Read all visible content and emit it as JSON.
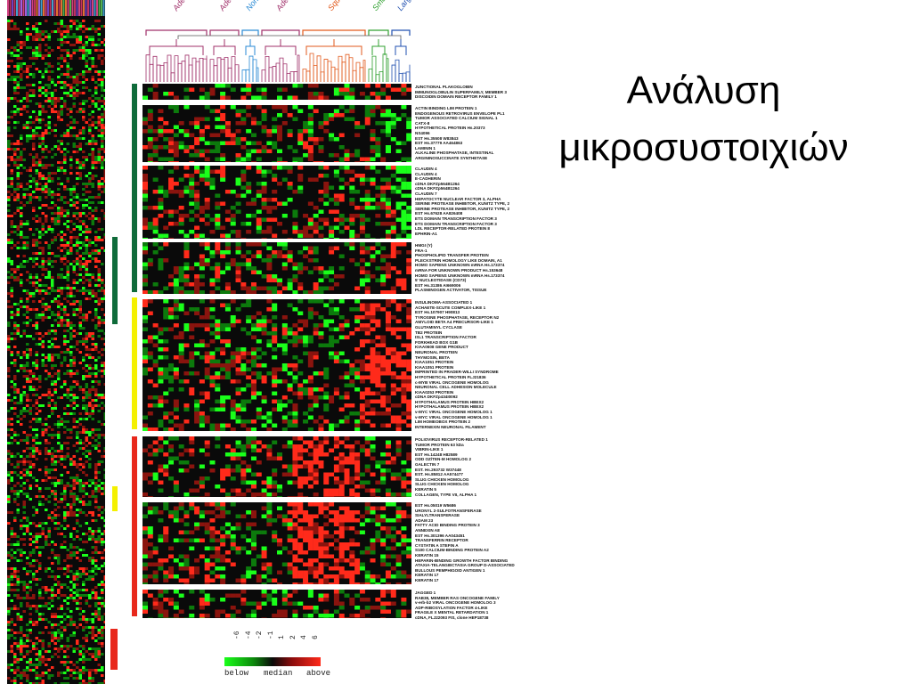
{
  "slide": {
    "title_line1": "Ανάλυση",
    "title_line2": "μικροσυστοιχιών"
  },
  "figure": {
    "group_labels": [
      {
        "text": "Adeno g",
        "color": "#a0306a"
      },
      {
        "text": "Adeno g",
        "color": "#a0306a"
      },
      {
        "text": "Normal",
        "color": "#2a8ad4"
      },
      {
        "text": "Adeno g",
        "color": "#a0306a"
      },
      {
        "text": "Squamou",
        "color": "#e25a1c"
      },
      {
        "text": "Small ce",
        "color": "#30a030"
      },
      {
        "text": "Large ce",
        "color": "#2050b0"
      }
    ],
    "cluster_blocks": [
      {
        "genes": [
          "JUNCTIONAL PLAKOGLOBIN",
          "IMMUNOGLOBULIN SUPERFAMILY, MEMBER 3",
          "DISCOIDIN DOMAIN RECEPTOR FAMILY 1"
        ]
      },
      {
        "genes": [
          "ACTIN BINDING LIM PROTEIN 1",
          "ENDOGENOUS RETROVIRUS ENVELOPE PL1",
          "TUMOR ASSOCIATED CALCIUM SIGNAL 1",
          "CATX-8",
          "HYPOTHETICAL PROTEIN Hs.20373",
          "NS4096",
          "EST Hs.35508 W83843",
          "EST Hs.37779 AA464863",
          "LAMININ 1",
          "ALKALINE PHOSPHATASE, INTESTINAL",
          "ARGININOSUCCINATE SYNTHETASE"
        ]
      },
      {
        "genes": [
          "CLAUDIN 4",
          "CLAUDIN 4",
          "E-CADHERIN",
          "cDNA DKFZp564B1264",
          "cDNA DKFZp564B1264",
          "CLAUDIN 7",
          "HEPATOCYTE NUCLEAR FACTOR 3, ALPHA",
          "SERINE PROTEASE INHIBITOR, KUNITZ TYPE, 2",
          "SERINE PROTEASE INHIBITOR, KUNITZ TYPE, 2",
          "EST Hs.67628 AA826408",
          "ETS DOMAIN TRANSCRIPTION FACTOR 3",
          "ETS DOMAIN TRANSCRIPTION FACTOR 3",
          "LDL RECEPTOR-RELATED PROTEIN 8",
          "EPHRIN-A1"
        ]
      },
      {
        "genes": [
          "HMGI (Y)",
          "FRA-1",
          "PHOSPHOLIPID TRANSFER PROTEIN",
          "PLECKSTRIN HOMOLOGY LIKE DOMAIN, A1",
          "HOMO SAPIENS UNKNOWN mRNA Hs.173374",
          "mRNA FOR UNKNOWN PRODUCT Hs.153648",
          "HOMO SAPIENS UNKNOWN mRNA Hs.173374",
          "5' NUCLEOTIDASE (CD73)",
          "EST Hs.31386 AI669006",
          "PLASMINOGEN ACTIVATOR, TISSUE"
        ]
      },
      {
        "genes": [
          "INSULINOMA-ASSOCIATED 1",
          "ACHAETE-SCUTE COMPLEX-LIKE 1",
          "EST Hs.107907 H90813",
          "TYROSINE PHOSPHATASE, RECEPTOR N2",
          "AMYLOID BETA A4 PRECURSOR-LIKE 1",
          "GLUTAMINYL CYCLASE",
          "TB2 PROTEIN",
          "ISL1 TRANSCRIPTION FACTOR",
          "FORKHEAD BOX G1B",
          "KIAA0608 GENE PRODUCT",
          "NEURONAL PROTEIN",
          "THYMOSIN, BETA",
          "KIAA1051 PROTEIN",
          "KIAA1051 PROTEIN",
          "IMPRINTED IN PRADER-WILLI SYNDROME",
          "HYPOTHETICAL PROTEIN FLJ21836",
          "c-MYB VIRAL ONCOGENE HOMOLOG",
          "NEURONAL CELL ADHESION MOLECULE",
          "KIAA0253 PROTEIN",
          "cDNA DKFZp434I0092",
          "HYPOTHALAMUS PROTEIN HBEX2",
          "HYPOTHALAMUS PROTEIN HBEX2",
          "v-MYC VIRAL ONCOGENE HOMOLOG 1",
          "v-MYC VIRAL ONCOGENE HOMOLOG 1",
          "LIM HOMEOBOX PROTEIN 2",
          "INTERNEXIN NEURONAL FILAMENT"
        ]
      },
      {
        "genes": [
          "POLIOVIRUS RECEPTOR-RELATED 1",
          "TUMOR PROTEIN 63 kDa",
          "VIBRIN-LIKE 1",
          "EST Hs.14248 H82589",
          "ODD OZ/TEN-M HOMOLOG 2",
          "GALECTIN 7",
          "EST. Hs.293732 W37448",
          "EST. Hs.85812 AA574477",
          "SLUG CHICKEN HOMOLOG",
          "SLUG CHICKEN HOMOLOG",
          "KERATIN 5",
          "COLLAGEN, TYPE VII, ALPHA 1"
        ]
      },
      {
        "genes": [
          "EST Hs.05019 W5686",
          "URONYL 2-SULFOTRANSFERASE",
          "SIALYLTRANSFERASE",
          "ADAM 23",
          "FATTY ACID BINDING PROTEIN 3",
          "ANNEXIN A8",
          "EST Hs.301396 AA043451",
          "TRANSFERRIN RECEPTOR",
          "CYSTATIN A STEFIN A",
          "S100 CALCIUM-BINDING PROTEIN A2",
          "KERATIN 15",
          "HEPARIN-BINDING GROWTH FACTOR BINDING",
          "ATAXIA-TELANGIECTASIA GROUP D-ASSOCIATED",
          "BULLOUS PEMPHIGOID ANTIGEN 1",
          "KERATIN 17",
          "KERATIN 17"
        ]
      },
      {
        "genes": [
          "JAGGED 1",
          "RAB38, MEMBER RAS ONCOGENE FAMILY",
          "v-erb-b2 VIRAL ONCOGENE HOMOLOG 3",
          "ADP-RIBOSYLATION FACTOR 4-LIKE",
          "FRAGILE X MENTAL RETARDATION 1",
          "cDNA, FLJ22093 FIS, clone HEP18738"
        ]
      }
    ],
    "legend": {
      "ticks": [
        "-6",
        "-4",
        "-2",
        "-1",
        "1",
        "2",
        "4",
        "6"
      ],
      "below_label": "below",
      "median_label": "median",
      "above_label": "above"
    },
    "colors": {
      "up": "#ff2a1a",
      "down": "#1aff1a",
      "neutral": "#0a0a0a",
      "bar_green": "#0f6b3a",
      "bar_yellow": "#f4f000",
      "bar_red": "#e8281c"
    }
  }
}
